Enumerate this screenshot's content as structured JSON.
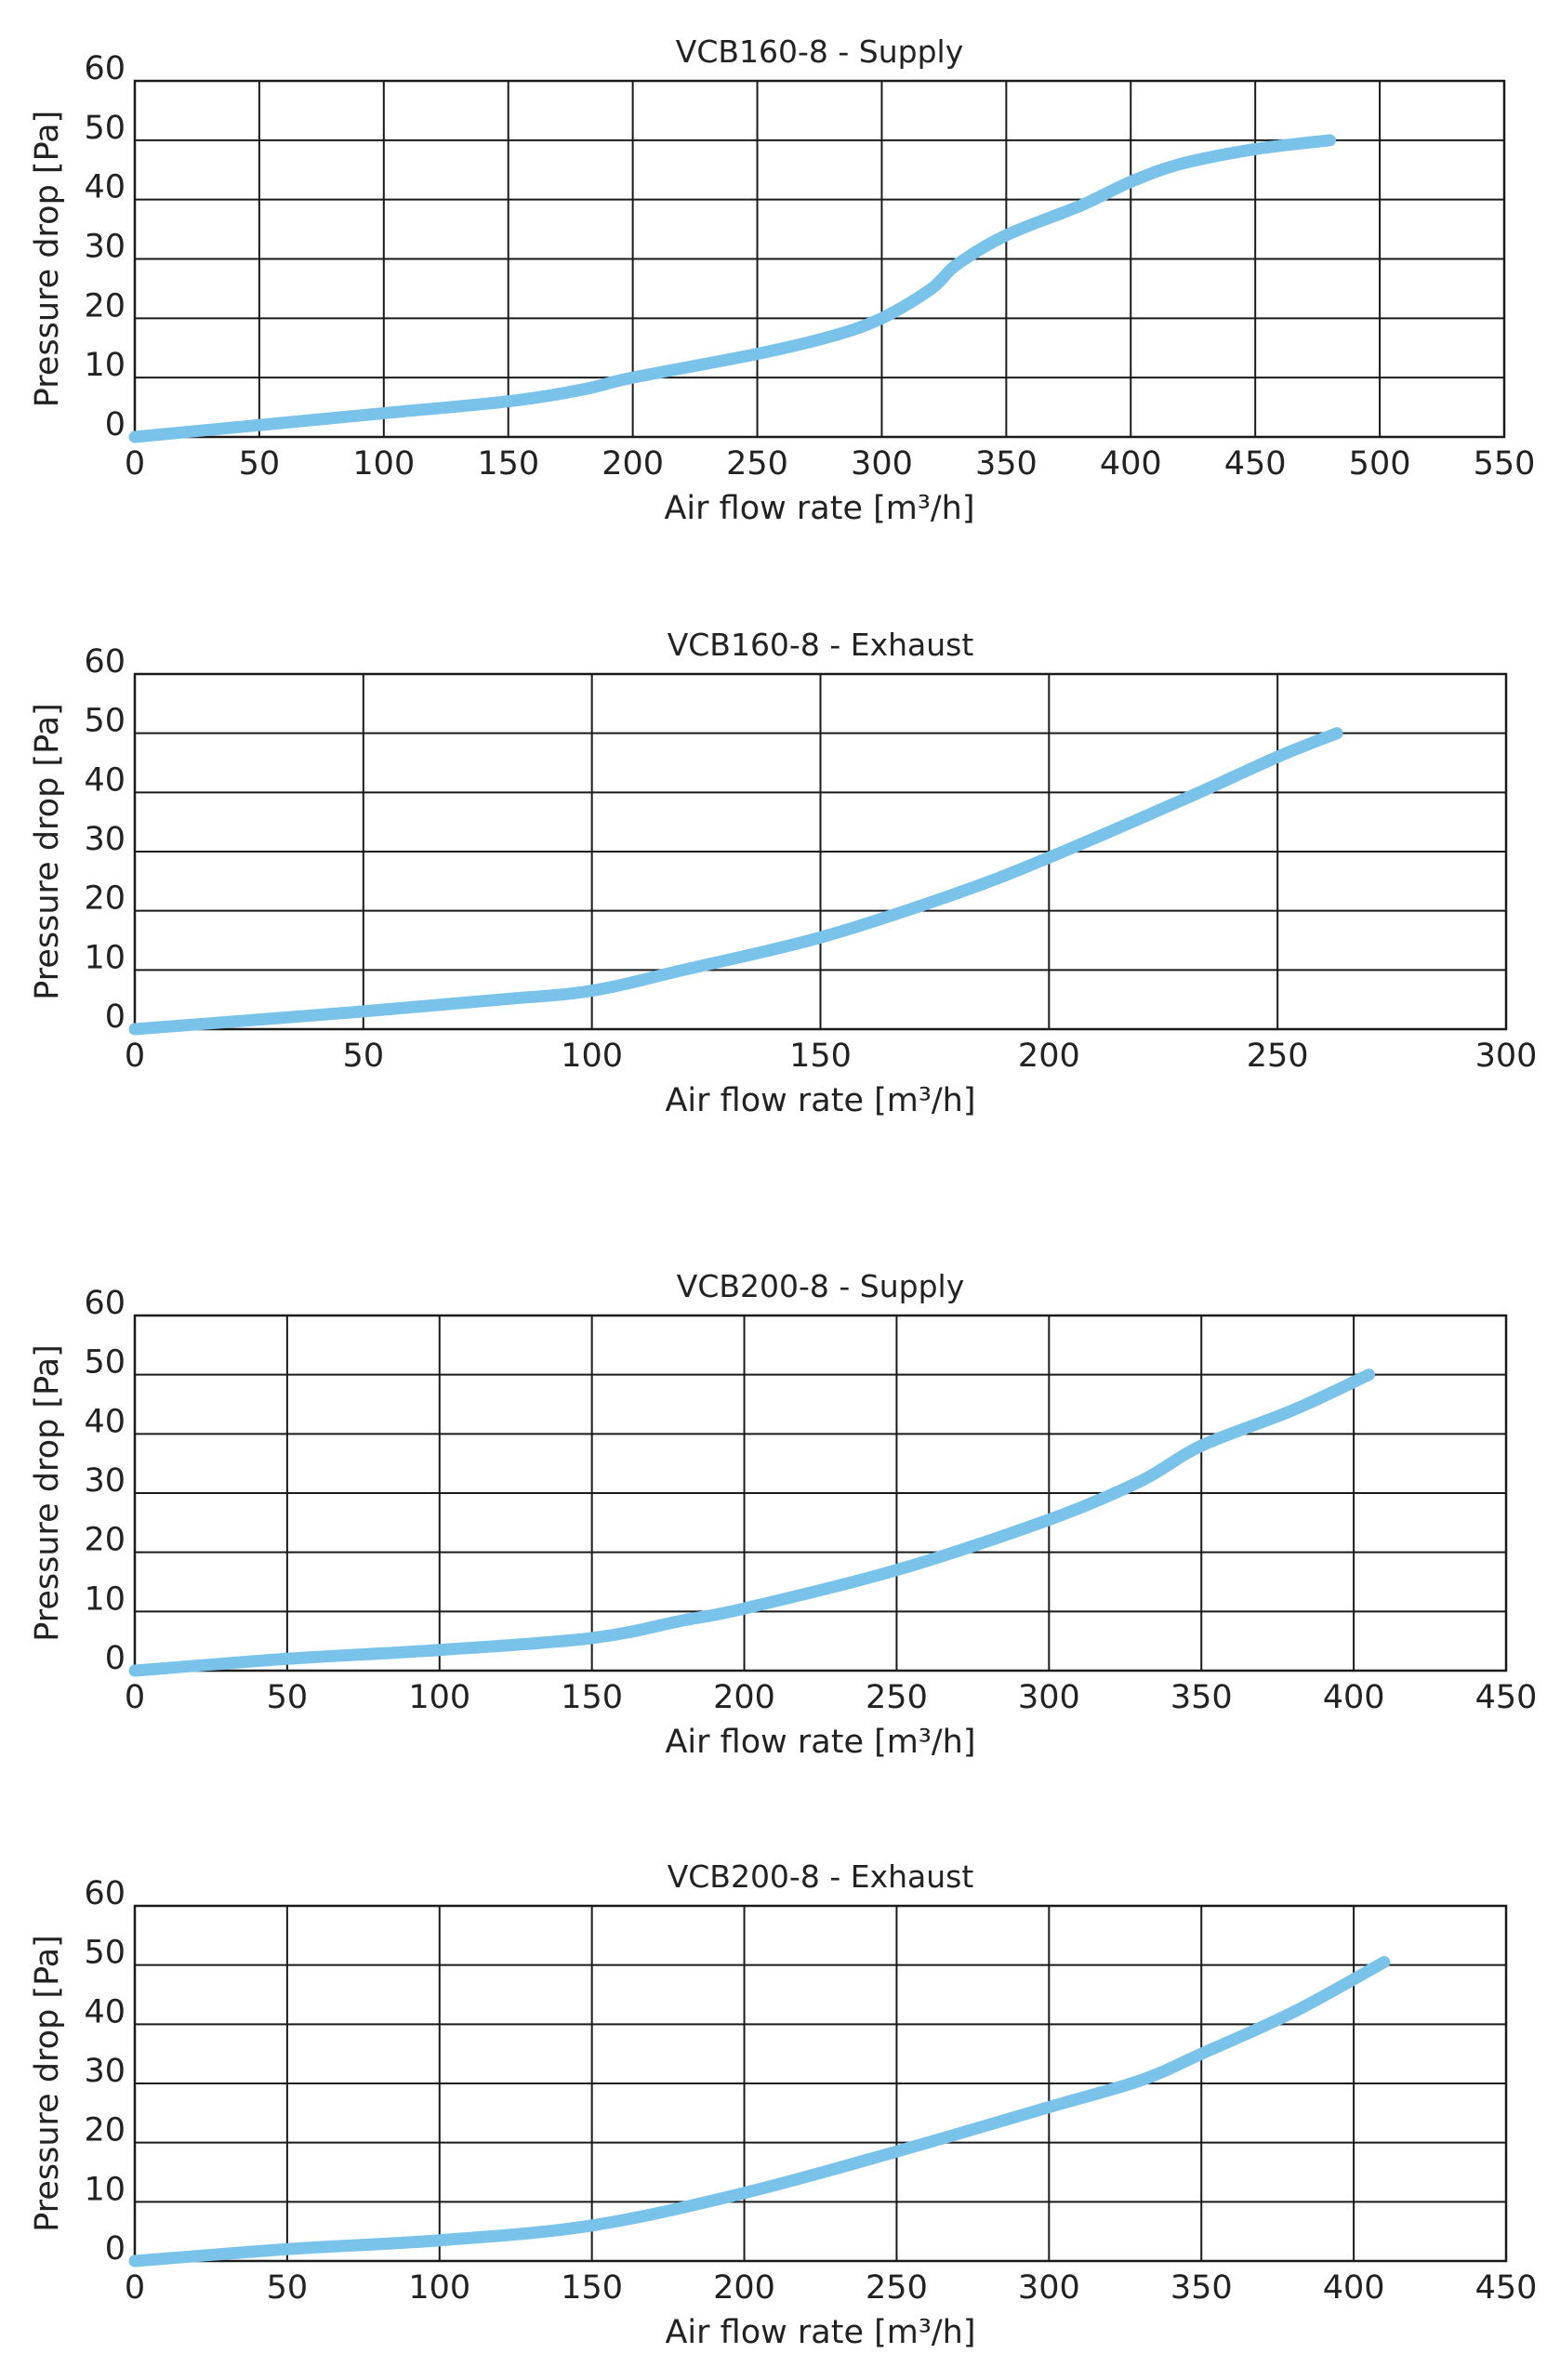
{
  "chart_data": [
    {
      "type": "line",
      "title": "VCB160-8 - Supply",
      "xlabel": "Air flow rate [m³/h]",
      "ylabel": "Pressure drop [Pa]",
      "xlim": [
        0,
        550
      ],
      "ylim": [
        0,
        60
      ],
      "x_ticks": [
        "0",
        "50",
        "100",
        "150",
        "200",
        "250",
        "300",
        "350",
        "400",
        "450",
        "500",
        "550"
      ],
      "y_ticks": [
        "0",
        "10",
        "20",
        "30",
        "40",
        "50",
        "60"
      ],
      "grid": true,
      "line_color": "#79c2ea",
      "series": [
        {
          "x": [
            0,
            50,
            100,
            150,
            180,
            200,
            250,
            280,
            300,
            320,
            330,
            350,
            380,
            400,
            420,
            450,
            480
          ],
          "values": [
            0,
            2,
            4,
            6,
            8,
            10,
            14,
            17,
            20,
            25,
            29,
            34,
            39,
            43,
            46,
            48.5,
            50
          ]
        }
      ]
    },
    {
      "type": "line",
      "title": "VCB160-8 - Exhaust",
      "xlabel": "Air flow rate [m³/h]",
      "ylabel": "Pressure drop [Pa]",
      "xlim": [
        0,
        300
      ],
      "ylim": [
        0,
        60
      ],
      "x_ticks": [
        "0",
        "50",
        "100",
        "150",
        "200",
        "250",
        "300"
      ],
      "y_ticks": [
        "0",
        "10",
        "20",
        "30",
        "40",
        "50",
        "60"
      ],
      "grid": true,
      "line_color": "#79c2ea",
      "series": [
        {
          "x": [
            0,
            50,
            80,
            100,
            120,
            150,
            180,
            200,
            230,
            250,
            263
          ],
          "values": [
            0,
            3,
            5,
            6.5,
            10,
            15.5,
            23,
            29,
            39,
            46,
            50
          ]
        }
      ]
    },
    {
      "type": "line",
      "title": "VCB200-8 - Supply",
      "xlabel": "Air flow rate [m³/h]",
      "ylabel": "Pressure drop [Pa]",
      "xlim": [
        0,
        450
      ],
      "ylim": [
        0,
        60
      ],
      "x_ticks": [
        "0",
        "50",
        "100",
        "150",
        "200",
        "250",
        "300",
        "350",
        "400",
        "450"
      ],
      "y_ticks": [
        "0",
        "10",
        "20",
        "30",
        "40",
        "50",
        "60"
      ],
      "grid": true,
      "line_color": "#79c2ea",
      "series": [
        {
          "x": [
            0,
            50,
            100,
            150,
            180,
            200,
            250,
            300,
            330,
            350,
            380,
            405
          ],
          "values": [
            0,
            2,
            3.5,
            5.5,
            8.5,
            10.5,
            17,
            25.5,
            32,
            38,
            44,
            50
          ]
        }
      ]
    },
    {
      "type": "line",
      "title": "VCB200-8 - Exhaust",
      "xlabel": "Air flow rate [m³/h]",
      "ylabel": "Pressure drop [Pa]",
      "xlim": [
        0,
        450
      ],
      "ylim": [
        0,
        60
      ],
      "x_ticks": [
        "0",
        "50",
        "100",
        "150",
        "200",
        "250",
        "300",
        "350",
        "400",
        "450"
      ],
      "y_ticks": [
        "0",
        "10",
        "20",
        "30",
        "40",
        "50",
        "60"
      ],
      "grid": true,
      "line_color": "#79c2ea",
      "series": [
        {
          "x": [
            0,
            50,
            100,
            150,
            200,
            250,
            300,
            330,
            350,
            380,
            410
          ],
          "values": [
            0,
            2,
            3.5,
            6,
            11.5,
            18.5,
            26,
            30.5,
            35,
            42,
            50.5
          ]
        }
      ]
    }
  ]
}
